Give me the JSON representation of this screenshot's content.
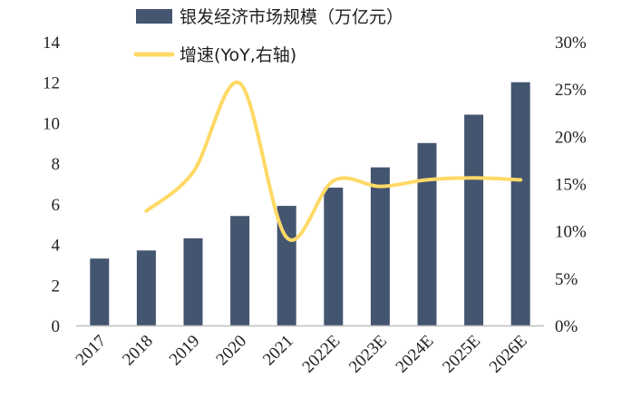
{
  "chart_data": {
    "type": "bar",
    "categories": [
      "2017",
      "2018",
      "2019",
      "2020",
      "2021",
      "2022E",
      "2023E",
      "2024E",
      "2025E",
      "2026E"
    ],
    "series": [
      {
        "name": "银发经济市场规模（万亿元）",
        "type": "bar",
        "axis": "left",
        "values": [
          3.3,
          3.7,
          4.3,
          5.4,
          5.9,
          6.8,
          7.8,
          9.0,
          10.4,
          12.0
        ]
      },
      {
        "name": "增速(YoY,右轴)",
        "type": "line",
        "axis": "right",
        "values": [
          null,
          12.1,
          16.2,
          25.6,
          9.3,
          15.3,
          14.7,
          15.4,
          15.6,
          15.4
        ]
      }
    ],
    "left_axis": {
      "ylim": [
        0,
        14
      ],
      "ticks": [
        "0",
        "2",
        "4",
        "6",
        "8",
        "10",
        "12",
        "14"
      ]
    },
    "right_axis": {
      "ylim": [
        0,
        30
      ],
      "ticks": [
        "0%",
        "5%",
        "10%",
        "15%",
        "20%",
        "25%",
        "30%"
      ]
    },
    "legend": "top",
    "grid": false,
    "colors": {
      "bar": "#445570",
      "line": "#FFD966",
      "axis": "#bfbfbf"
    }
  }
}
